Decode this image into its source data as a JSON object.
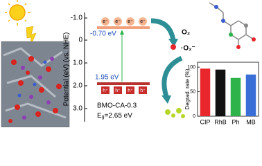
{
  "diagram": {
    "axis_label": "Potential (eV) (vs. NHE)",
    "potential_ticks": [
      "-1.0",
      "0",
      "1.0",
      "2.0",
      "3.0"
    ],
    "electrons": [
      "e⁻",
      "e⁻",
      "e⁻",
      "e⁻"
    ],
    "holes": [
      "h⁺",
      "h⁺",
      "h⁺",
      "h⁺"
    ],
    "cb_label": "-0.70 eV",
    "vb_label": "1.95 eV",
    "sample": "BMO-CA-0.3",
    "band_gap": {
      "symbol": "E",
      "subscript": "g",
      "value": "=2.65 eV"
    },
    "oxygen": "O₂",
    "superoxide": "·O₂⁻"
  },
  "chart_data": {
    "type": "bar",
    "ylabel": "Degrad. rate (%)",
    "categories": [
      "CIP",
      "RhB",
      "Ph",
      "MB"
    ],
    "values": [
      97,
      95,
      78,
      85
    ],
    "colors": [
      "#e8262b",
      "#111111",
      "#2db34a",
      "#3a6fd8"
    ],
    "ylim": [
      0,
      110
    ],
    "yticks": [
      0,
      50,
      100
    ]
  }
}
